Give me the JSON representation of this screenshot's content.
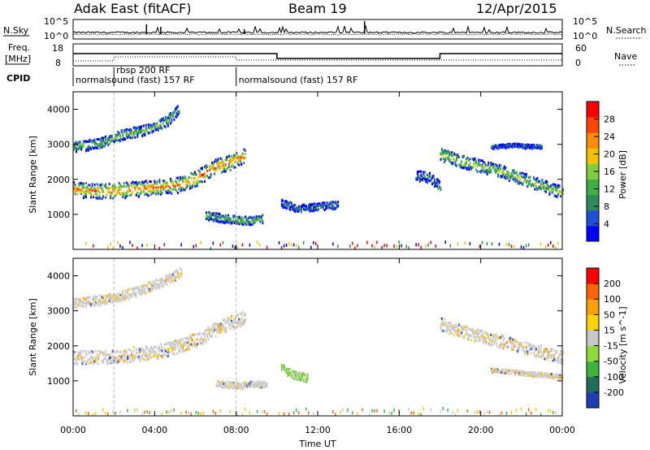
{
  "header": {
    "radar": "Adak East (fitACF)",
    "beam": "Beam 19",
    "date": "12/Apr/2015"
  },
  "noise_panel": {
    "left_label": "N.Sky",
    "right_label": "N.Search",
    "left_ticks": [
      "10^5",
      "10^0"
    ],
    "right_ticks": [
      "10^5",
      "10^0"
    ]
  },
  "freq_panel": {
    "left_label_line1": "Freq.",
    "left_label_line2": "[MHz]",
    "right_label": "Nave",
    "left_ticks": [
      "18",
      "8"
    ],
    "right_ticks": [
      "60",
      "0"
    ]
  },
  "cpid": {
    "label": "CPID",
    "segments": [
      {
        "start_hour": 0.0,
        "text": "normalsound (fast) 157 RF"
      },
      {
        "start_hour": 2.0,
        "text": "rbsp 200 RF"
      },
      {
        "start_hour": 8.0,
        "text": "normalsound (fast) 157 RF"
      }
    ]
  },
  "chart_data": [
    {
      "type": "heatmap",
      "title": "",
      "ylabel": "Slant Range [km]",
      "xlabel": "",
      "xlim": [
        0,
        24
      ],
      "ylim": [
        0,
        4500
      ],
      "yticks": [
        "1000",
        "2000",
        "3000",
        "4000"
      ],
      "colorbar": {
        "label": "Power [dB]",
        "ticks": [
          "28",
          "24",
          "20",
          "16",
          "12",
          "8",
          "4"
        ],
        "colors": [
          "#0000ff",
          "#1f4fd8",
          "#2e8b57",
          "#3cb043",
          "#7fcf3a",
          "#f2c200",
          "#ff8c00",
          "#ff4500",
          "#ff0000"
        ]
      },
      "bands": [
        {
          "x": [
            0,
            1,
            2,
            3,
            4,
            5,
            6,
            7,
            7.6,
            8.4
          ],
          "y": [
            1700,
            1650,
            1650,
            1700,
            1750,
            1800,
            2000,
            2350,
            2450,
            2650
          ],
          "half_width": 220,
          "level": 0.72
        },
        {
          "x": [
            0,
            1.2,
            2.4,
            3.6,
            4.6,
            5.2
          ],
          "y": [
            2900,
            3000,
            3250,
            3400,
            3650,
            4000
          ],
          "half_width": 150,
          "level": 0.35
        },
        {
          "x": [
            6.5,
            7.5,
            8.5,
            9.3
          ],
          "y": [
            950,
            850,
            800,
            850
          ],
          "half_width": 120,
          "level": 0.35
        },
        {
          "x": [
            10.2,
            11,
            12,
            13
          ],
          "y": [
            1300,
            1150,
            1200,
            1250
          ],
          "half_width": 110,
          "level": 0.15
        },
        {
          "x": [
            16.8,
            17.6,
            18.0
          ],
          "y": [
            2100,
            2000,
            1750
          ],
          "half_width": 150,
          "level": 0.2
        },
        {
          "x": [
            18.0,
            19,
            20,
            21,
            22,
            23,
            24
          ],
          "y": [
            2700,
            2500,
            2350,
            2200,
            2000,
            1800,
            1600
          ],
          "half_width": 180,
          "level": 0.45
        },
        {
          "x": [
            20.5,
            21.5,
            23
          ],
          "y": [
            2900,
            2950,
            2900
          ],
          "half_width": 60,
          "level": 0.1
        }
      ]
    },
    {
      "type": "heatmap",
      "title": "",
      "ylabel": "Slant Range [km]",
      "xlabel": "Time UT",
      "xlim": [
        0,
        24
      ],
      "ylim": [
        0,
        4500
      ],
      "xticks": [
        "00:00",
        "04:00",
        "08:00",
        "12:00",
        "16:00",
        "20:00",
        "00:00"
      ],
      "yticks": [
        "1000",
        "2000",
        "3000",
        "4000"
      ],
      "colorbar": {
        "label": "Velocity [m s^-1]",
        "ticks": [
          "200",
          "100",
          "50",
          "15",
          "-15",
          "-50",
          "-100",
          "-200"
        ],
        "colors": [
          "#1e3cb4",
          "#1e6e5a",
          "#3cb43c",
          "#8cdc3c",
          "#c8c8c8",
          "#ffd200",
          "#ffa000",
          "#ff6400",
          "#ff0000"
        ]
      },
      "bands": [
        {
          "x": [
            0,
            1,
            2,
            3,
            4,
            5,
            6,
            7,
            7.6,
            8.4
          ],
          "y": [
            1650,
            1650,
            1650,
            1750,
            1800,
            1950,
            2150,
            2450,
            2600,
            2800
          ],
          "half_width": 200,
          "tone": "gray"
        },
        {
          "x": [
            0,
            1.5,
            3,
            4.5,
            5.3
          ],
          "y": [
            3200,
            3300,
            3500,
            3850,
            4100
          ],
          "half_width": 140,
          "tone": "gray"
        },
        {
          "x": [
            7,
            8,
            9.5
          ],
          "y": [
            900,
            850,
            900
          ],
          "half_width": 90,
          "tone": "gray"
        },
        {
          "x": [
            10.2,
            10.8,
            11.5
          ],
          "y": [
            1350,
            1150,
            1050
          ],
          "half_width": 120,
          "tone": "green"
        },
        {
          "x": [
            18,
            19,
            20,
            21,
            22,
            23,
            24
          ],
          "y": [
            2600,
            2400,
            2250,
            2100,
            1950,
            1800,
            1650
          ],
          "half_width": 180,
          "tone": "gray"
        },
        {
          "x": [
            20.5,
            22,
            24
          ],
          "y": [
            1300,
            1200,
            1100
          ],
          "half_width": 60,
          "tone": "gray"
        }
      ]
    }
  ]
}
